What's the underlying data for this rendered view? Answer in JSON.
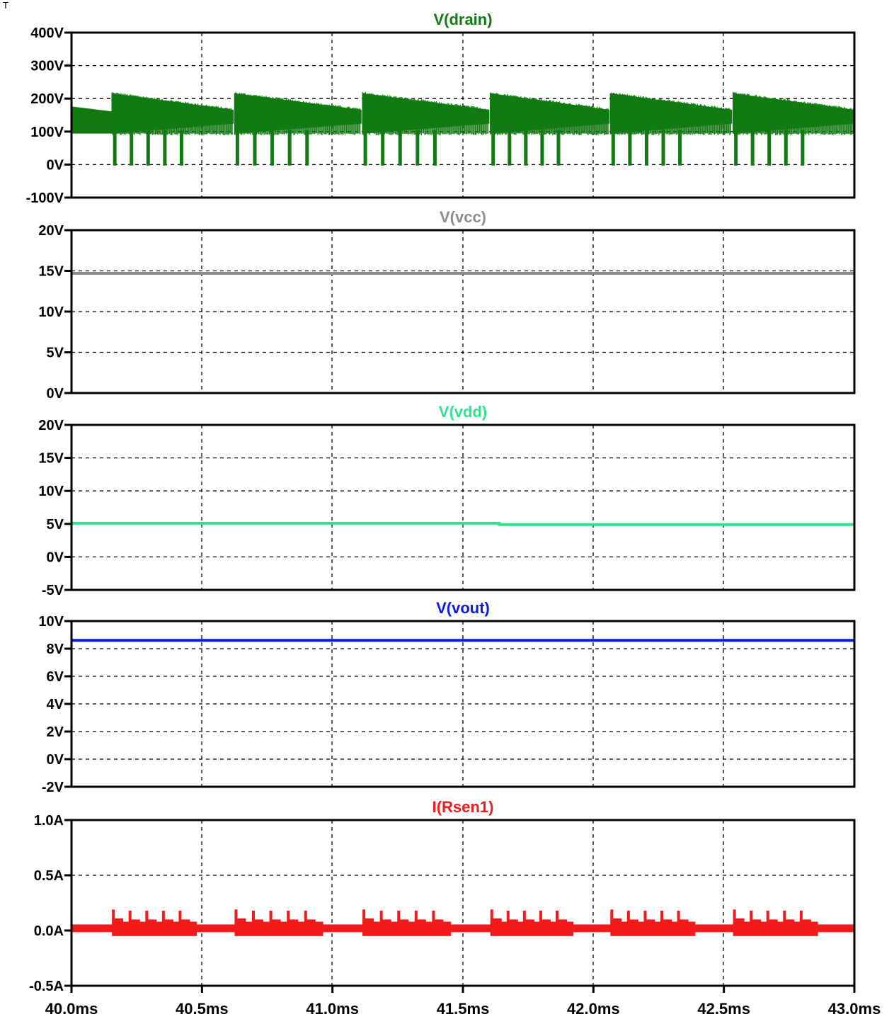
{
  "corner_text": "T",
  "colors": {
    "frame": "#000000",
    "grid": "#000000",
    "drain": "#137a13",
    "vcc": "#8c8c8c",
    "vdd": "#2ee58f",
    "vout": "#0a1be6",
    "isense": "#f21a1a"
  },
  "chart_data": [
    {
      "type": "line",
      "title": "V(drain)",
      "color_key": "drain",
      "x_range": [
        40.0,
        43.0
      ],
      "x_unit": "ms",
      "ylim": [
        -100,
        400
      ],
      "yticks": [
        "400V",
        "300V",
        "200V",
        "100V",
        "0V",
        "-100V"
      ],
      "ytick_values": [
        400,
        300,
        200,
        100,
        0,
        -100
      ],
      "grid": true,
      "description_kind": "switching",
      "bursts": [
        {
          "start": 40.155,
          "end": 40.62
        },
        {
          "start": 40.625,
          "end": 41.11
        },
        {
          "start": 41.115,
          "end": 41.6
        },
        {
          "start": 41.605,
          "end": 42.06
        },
        {
          "start": 42.065,
          "end": 42.53
        },
        {
          "start": 42.535,
          "end": 43.0
        }
      ],
      "envelope": {
        "start_high": 215,
        "end_high": 165,
        "low": 95,
        "idle_high": 170,
        "idle_low": 125
      },
      "spike_min": 0,
      "spike_count_per_burst": 5
    },
    {
      "type": "line",
      "title": "V(vcc)",
      "color_key": "vcc",
      "x_range": [
        40.0,
        43.0
      ],
      "ylim": [
        0,
        20
      ],
      "yticks": [
        "20V",
        "15V",
        "10V",
        "5V",
        "0V"
      ],
      "ytick_values": [
        20,
        15,
        10,
        5,
        0
      ],
      "grid": true,
      "x": [
        40.0,
        43.0
      ],
      "y": [
        14.7,
        14.7
      ]
    },
    {
      "type": "line",
      "title": "V(vdd)",
      "color_key": "vdd",
      "x_range": [
        40.0,
        43.0
      ],
      "ylim": [
        -5,
        20
      ],
      "yticks": [
        "20V",
        "15V",
        "10V",
        "5V",
        "0V",
        "-5V"
      ],
      "ytick_values": [
        20,
        15,
        10,
        5,
        0,
        -5
      ],
      "grid": true,
      "x": [
        40.0,
        41.64,
        41.64,
        43.0
      ],
      "y": [
        5.1,
        5.1,
        4.9,
        4.9
      ]
    },
    {
      "type": "line",
      "title": "V(vout)",
      "color_key": "vout",
      "x_range": [
        40.0,
        43.0
      ],
      "ylim": [
        -2,
        10
      ],
      "yticks": [
        "10V",
        "8V",
        "6V",
        "4V",
        "2V",
        "0V",
        "-2V"
      ],
      "ytick_values": [
        10,
        8,
        6,
        4,
        2,
        0,
        -2
      ],
      "grid": true,
      "x": [
        40.0,
        43.0
      ],
      "y": [
        8.6,
        8.6
      ]
    },
    {
      "type": "line",
      "title": "I(Rsen1)",
      "color_key": "isense",
      "x_range": [
        40.0,
        43.0
      ],
      "ylim": [
        -0.5,
        1.0
      ],
      "yticks": [
        "1.0A",
        "0.5A",
        "0.0A",
        "-0.5A"
      ],
      "ytick_values": [
        1.0,
        0.5,
        0.0,
        -0.5
      ],
      "grid": true,
      "xticks": [
        "40.0ms",
        "40.5ms",
        "41.0ms",
        "41.5ms",
        "42.0ms",
        "42.5ms",
        "43.0ms"
      ],
      "xtick_values": [
        40.0,
        40.5,
        41.0,
        41.5,
        42.0,
        42.5,
        43.0
      ],
      "description_kind": "current",
      "bursts": [
        {
          "start": 40.155,
          "end": 40.62
        },
        {
          "start": 40.625,
          "end": 41.11
        },
        {
          "start": 41.115,
          "end": 41.6
        },
        {
          "start": 41.605,
          "end": 42.06
        },
        {
          "start": 42.065,
          "end": 42.53
        },
        {
          "start": 42.535,
          "end": 43.0
        }
      ],
      "baseline": 0.02,
      "spike_peak": 0.19,
      "spike_count_per_burst": 5
    }
  ]
}
